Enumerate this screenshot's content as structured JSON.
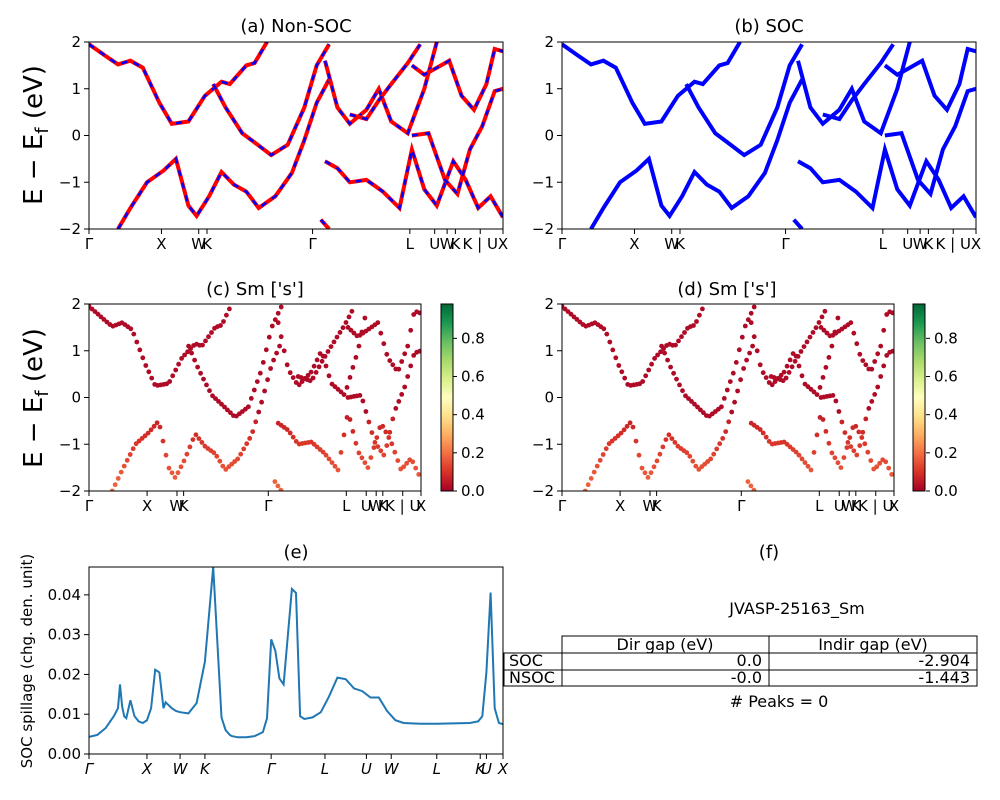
{
  "figure": {
    "id_label": "JVASP-25163_Sm",
    "peaks_text": "# Peaks = 0"
  },
  "shared": {
    "ylabel": "E − E_f (eV)",
    "band_ticks": [
      "Γ",
      "X",
      "WK",
      "Γ",
      "L",
      "UWK",
      "K | U",
      "X"
    ]
  },
  "chart_data": [
    {
      "id": "a",
      "type": "line",
      "title": "(a) Non-SOC",
      "ylabel": "E − E_f (eV)",
      "ylim": [
        -2,
        2
      ],
      "yticks": [
        -2,
        -1,
        0,
        1,
        2
      ],
      "xticks": [
        "Γ",
        "X",
        "WK",
        "Γ",
        "L",
        "U",
        "W",
        "K",
        "K | U",
        "X"
      ],
      "series": [
        {
          "color": "#ff0000",
          "style": "solid",
          "bands": [
            [
              [
                0,
                1.95
              ],
              [
                0.04,
                1.7
              ],
              [
                0.07,
                1.52
              ],
              [
                0.1,
                1.6
              ],
              [
                0.13,
                1.45
              ],
              [
                0.17,
                0.7
              ],
              [
                0.2,
                0.25
              ],
              [
                0.24,
                0.3
              ],
              [
                0.28,
                0.85
              ],
              [
                0.32,
                1.15
              ],
              [
                0.34,
                1.1
              ],
              [
                0.38,
                1.5
              ],
              [
                0.4,
                1.55
              ],
              [
                0.43,
                2
              ]
            ],
            [
              [
                0.07,
                -2
              ],
              [
                0.1,
                -1.55
              ],
              [
                0.14,
                -1.0
              ],
              [
                0.18,
                -0.75
              ],
              [
                0.21,
                -0.5
              ],
              [
                0.24,
                -1.5
              ],
              [
                0.26,
                -1.72
              ],
              [
                0.29,
                -1.3
              ],
              [
                0.32,
                -0.78
              ],
              [
                0.35,
                -1.05
              ],
              [
                0.38,
                -1.2
              ],
              [
                0.41,
                -1.55
              ],
              [
                0.45,
                -1.3
              ],
              [
                0.49,
                -0.8
              ],
              [
                0.52,
                -0.1
              ],
              [
                0.55,
                0.7
              ],
              [
                0.58,
                1.2
              ]
            ],
            [
              [
                0.3,
                1.1
              ],
              [
                0.33,
                0.6
              ],
              [
                0.37,
                0.05
              ],
              [
                0.4,
                -0.15
              ],
              [
                0.44,
                -0.42
              ],
              [
                0.48,
                -0.2
              ],
              [
                0.52,
                0.6
              ],
              [
                0.55,
                1.5
              ],
              [
                0.58,
                1.95
              ]
            ],
            [
              [
                0.56,
                -1.8
              ],
              [
                0.58,
                -2
              ]
            ],
            [
              [
                0.57,
                1.6
              ],
              [
                0.6,
                0.6
              ],
              [
                0.63,
                0.25
              ],
              [
                0.67,
                0.55
              ],
              [
                0.7,
                1.0
              ],
              [
                0.73,
                0.3
              ],
              [
                0.77,
                0.05
              ],
              [
                0.81,
                1.0
              ],
              [
                0.84,
                2
              ]
            ],
            [
              [
                0.63,
                0.45
              ],
              [
                0.67,
                0.35
              ],
              [
                0.7,
                0.75
              ],
              [
                0.73,
                1.1
              ],
              [
                0.77,
                1.55
              ],
              [
                0.8,
                1.95
              ]
            ],
            [
              [
                0.57,
                -0.55
              ],
              [
                0.6,
                -0.7
              ],
              [
                0.63,
                -1.0
              ],
              [
                0.67,
                -0.95
              ],
              [
                0.71,
                -1.2
              ],
              [
                0.75,
                -1.55
              ],
              [
                0.78,
                -0.3
              ],
              [
                0.81,
                -1.15
              ],
              [
                0.84,
                -1.5
              ],
              [
                0.88,
                -0.55
              ],
              [
                0.91,
                -0.95
              ],
              [
                0.94,
                -1.55
              ],
              [
                0.97,
                -1.3
              ],
              [
                1,
                -1.75
              ]
            ],
            [
              [
                0.78,
                0
              ],
              [
                0.82,
                0.05
              ],
              [
                0.86,
                -0.95
              ],
              [
                0.89,
                -1.25
              ],
              [
                0.92,
                -0.3
              ],
              [
                0.95,
                0.2
              ],
              [
                0.98,
                0.95
              ],
              [
                1,
                1.0
              ]
            ],
            [
              [
                0.78,
                1.5
              ],
              [
                0.81,
                1.3
              ],
              [
                0.84,
                1.45
              ],
              [
                0.87,
                1.6
              ],
              [
                0.9,
                0.85
              ],
              [
                0.93,
                0.55
              ],
              [
                0.96,
                1.1
              ],
              [
                0.98,
                1.85
              ],
              [
                1,
                1.8
              ]
            ]
          ]
        },
        {
          "color": "#0000ff",
          "style": "dashed",
          "follows": "previous"
        }
      ]
    },
    {
      "id": "b",
      "type": "line",
      "title": "(b) SOC",
      "ylim": [
        -2,
        2
      ],
      "yticks": [
        -2,
        -1,
        0,
        1,
        2
      ],
      "xticks": [
        "Γ",
        "X",
        "WK",
        "Γ",
        "L",
        "U",
        "W",
        "K",
        "K | U",
        "X"
      ],
      "series": [
        {
          "color": "#0000ff",
          "style": "solid",
          "same_bands_as": "a"
        }
      ]
    },
    {
      "id": "c",
      "type": "scatter",
      "title": "(c)  Sm ['s']",
      "ylabel": "E − E_f (eV)",
      "ylim": [
        -2,
        2
      ],
      "yticks": [
        -2,
        -1,
        0,
        1,
        2
      ],
      "xticks": [
        "Γ",
        "X",
        "WK",
        "Γ",
        "L",
        "U",
        "W",
        "K",
        "K | U",
        "X"
      ],
      "colorbar": {
        "cmap": "RdYlGn",
        "ticks": [
          "0.0",
          "0.2",
          "0.4",
          "0.6",
          "0.8"
        ],
        "range": [
          0,
          0.98
        ]
      },
      "same_bands_as": "a",
      "weight_range": [
        0,
        0.2
      ]
    },
    {
      "id": "d",
      "type": "scatter",
      "title": "(d) Sm ['s']",
      "ylim": [
        -2,
        2
      ],
      "yticks": [
        -2,
        -1,
        0,
        1,
        2
      ],
      "xticks": [
        "Γ",
        "X",
        "WK",
        "Γ",
        "L",
        "U",
        "W",
        "K",
        "K | U",
        "X"
      ],
      "colorbar": {
        "cmap": "RdYlGn",
        "ticks": [
          "0.0",
          "0.2",
          "0.4",
          "0.6",
          "0.8"
        ],
        "range": [
          0,
          0.98
        ]
      },
      "same_bands_as": "a",
      "weight_range": [
        0,
        0.2
      ]
    },
    {
      "id": "e",
      "type": "line",
      "title": "(e)",
      "ylabel": "SOC spillage (chg. den. unit)",
      "ylim": [
        0,
        0.047
      ],
      "yticks": [
        "0.00",
        "0.01",
        "0.02",
        "0.03",
        "0.04"
      ],
      "xticks": [
        "Γ",
        "X",
        "W",
        "K",
        "Γ",
        "L",
        "U",
        "W",
        "L",
        "K",
        "U",
        "X"
      ],
      "color": "#1f77b4",
      "x": [
        0,
        0.02,
        0.04,
        0.06,
        0.07,
        0.075,
        0.08,
        0.085,
        0.09,
        0.1,
        0.11,
        0.12,
        0.13,
        0.14,
        0.15,
        0.16,
        0.17,
        0.18,
        0.185,
        0.2,
        0.21,
        0.22,
        0.24,
        0.26,
        0.28,
        0.3,
        0.32,
        0.33,
        0.34,
        0.345,
        0.36,
        0.38,
        0.4,
        0.42,
        0.43,
        0.44,
        0.45,
        0.46,
        0.47,
        0.49,
        0.5,
        0.51,
        0.52,
        0.54,
        0.56,
        0.58,
        0.6,
        0.62,
        0.64,
        0.66,
        0.68,
        0.7,
        0.72,
        0.74,
        0.76,
        0.8,
        0.84,
        0.88,
        0.92,
        0.94,
        0.95,
        0.96,
        0.97,
        0.98,
        0.99,
        1.0
      ],
      "y": [
        0.0043,
        0.0048,
        0.0065,
        0.0095,
        0.0115,
        0.0175,
        0.012,
        0.0095,
        0.009,
        0.0135,
        0.0095,
        0.0082,
        0.0078,
        0.0085,
        0.0115,
        0.0212,
        0.0205,
        0.0115,
        0.013,
        0.0115,
        0.0108,
        0.0105,
        0.0102,
        0.0128,
        0.0232,
        0.047,
        0.0092,
        0.006,
        0.0048,
        0.0045,
        0.0042,
        0.0042,
        0.0045,
        0.0055,
        0.009,
        0.0288,
        0.026,
        0.019,
        0.0175,
        0.0415,
        0.0405,
        0.0095,
        0.0088,
        0.0092,
        0.0105,
        0.0145,
        0.0192,
        0.0188,
        0.0165,
        0.0158,
        0.0142,
        0.0142,
        0.0108,
        0.0085,
        0.0078,
        0.0076,
        0.0076,
        0.0077,
        0.0078,
        0.0082,
        0.0095,
        0.0205,
        0.0406,
        0.0115,
        0.0078,
        0.0075
      ]
    },
    {
      "id": "f",
      "type": "table",
      "title": "(f)",
      "caption": "JVASP-25163_Sm",
      "columns": [
        "Dir gap (eV)",
        "Indir gap (eV)"
      ],
      "rows": [
        {
          "label": "SOC",
          "values": [
            "0.0",
            "-2.904"
          ]
        },
        {
          "label": "NSOC",
          "values": [
            "-0.0",
            "-1.443"
          ]
        }
      ],
      "footer": "# Peaks = 0"
    }
  ]
}
